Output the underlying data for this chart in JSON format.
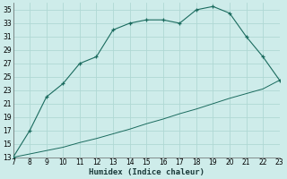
{
  "xlabel": "Humidex (Indice chaleur)",
  "bg_color": "#ceecea",
  "grid_color": "#b0d8d4",
  "line_color": "#1a6b5e",
  "upper_x": [
    7,
    8,
    9,
    10,
    11,
    12,
    13,
    14,
    15,
    16,
    17,
    18,
    19,
    20,
    21,
    22,
    23
  ],
  "upper_y": [
    13,
    17,
    22,
    24,
    27,
    28,
    32,
    33,
    33.5,
    33.5,
    33,
    35,
    35.5,
    34.5,
    31,
    28,
    24.5
  ],
  "lower_x": [
    7,
    8,
    9,
    10,
    11,
    12,
    13,
    14,
    15,
    16,
    17,
    18,
    19,
    20,
    21,
    22,
    23
  ],
  "lower_y": [
    13,
    13.5,
    14.0,
    14.5,
    15.2,
    15.8,
    16.5,
    17.2,
    18.0,
    18.7,
    19.5,
    20.2,
    21.0,
    21.8,
    22.5,
    23.2,
    24.5
  ],
  "xlim": [
    7,
    23
  ],
  "ylim": [
    13,
    36
  ],
  "xticks": [
    7,
    8,
    9,
    10,
    11,
    12,
    13,
    14,
    15,
    16,
    17,
    18,
    19,
    20,
    21,
    22,
    23
  ],
  "yticks": [
    13,
    15,
    17,
    19,
    21,
    23,
    25,
    27,
    29,
    31,
    33,
    35
  ],
  "xlabel_fontsize": 6.5,
  "tick_fontsize": 5.5
}
